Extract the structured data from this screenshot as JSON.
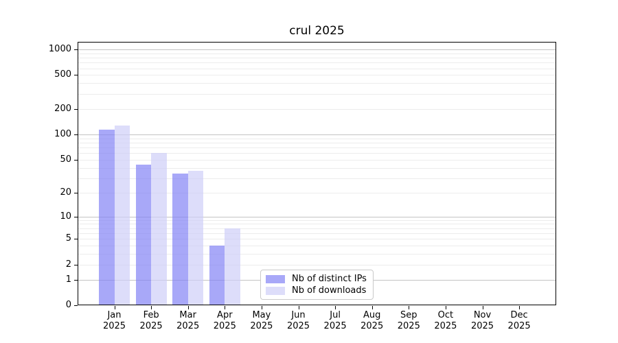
{
  "title": "crul 2025",
  "chart_data": {
    "type": "bar",
    "title": "crul 2025",
    "categories": [
      "Jan 2025",
      "Feb 2025",
      "Mar 2025",
      "Apr 2025",
      "May 2025",
      "Jun 2025",
      "Jul 2025",
      "Aug 2025",
      "Sep 2025",
      "Oct 2025",
      "Nov 2025",
      "Dec 2025"
    ],
    "series": [
      {
        "name": "Nb of distinct IPs",
        "color": "rgba(131,131,245,0.7)",
        "values": [
          114,
          44,
          34,
          4,
          0,
          0,
          0,
          0,
          0,
          0,
          0,
          0
        ]
      },
      {
        "name": "Nb of downloads",
        "color": "rgba(206,206,248,0.7)",
        "values": [
          127,
          60,
          37,
          7,
          0,
          0,
          0,
          0,
          0,
          0,
          0,
          0
        ]
      }
    ],
    "xlabel": "",
    "ylabel": "",
    "yscale": "log1p",
    "ylim": [
      0,
      1200
    ],
    "yticks": [
      0,
      1,
      2,
      5,
      10,
      20,
      50,
      100,
      200,
      500,
      1000
    ],
    "major_gridlines": [
      1,
      10,
      100,
      1000
    ],
    "minor_gridlines": [
      2,
      3,
      4,
      5,
      6,
      7,
      8,
      9,
      20,
      30,
      40,
      50,
      60,
      70,
      80,
      90,
      200,
      300,
      400,
      500,
      600,
      700,
      800,
      900
    ],
    "grid": true,
    "legend_position": "lower-center-inside"
  },
  "legend": {
    "items": [
      {
        "label": "Nb of distinct IPs"
      },
      {
        "label": "Nb of downloads"
      }
    ]
  },
  "colors": {
    "major_grid": "#c3c3c3",
    "minor_grid": "#ececec",
    "spine": "#000000"
  }
}
